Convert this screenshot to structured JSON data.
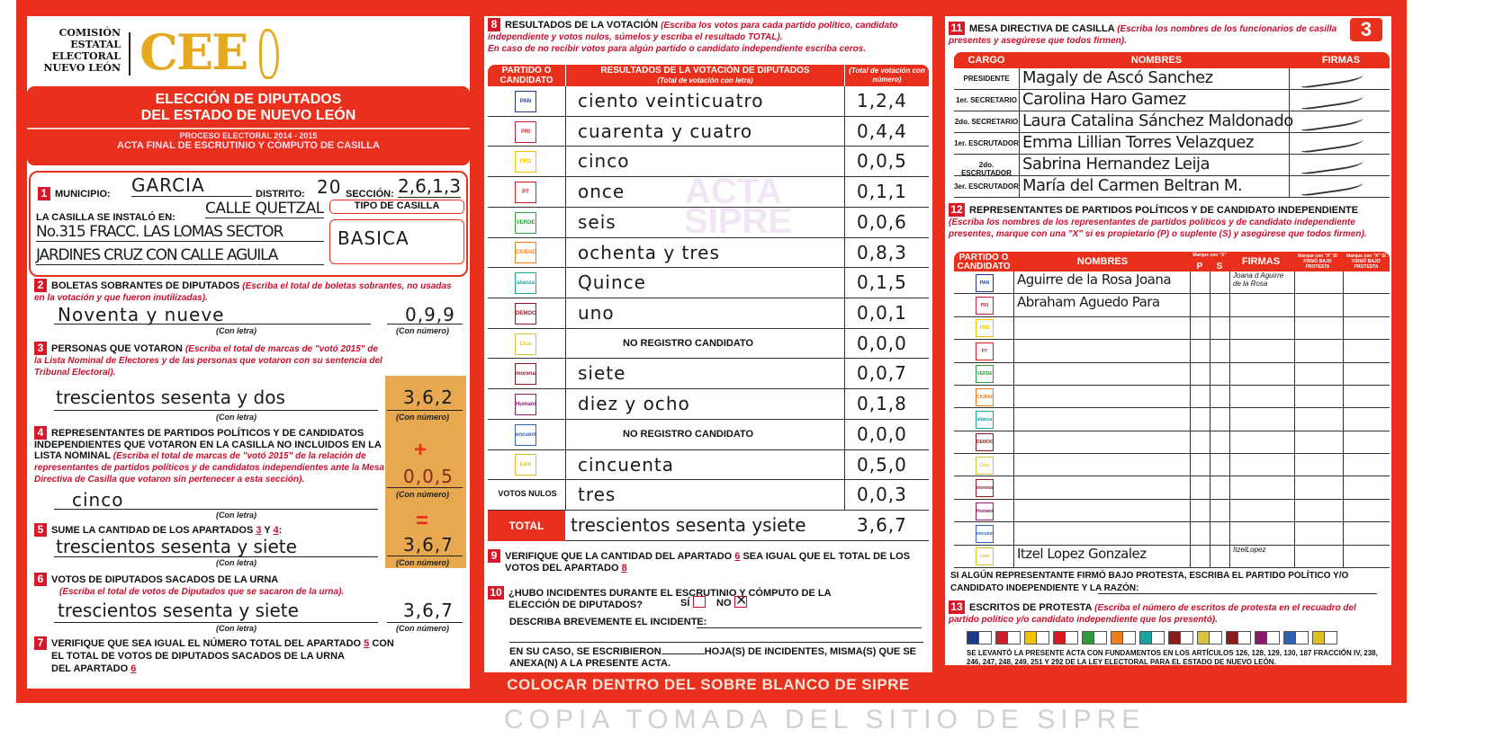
{
  "header": {
    "org": [
      "COMISIÓN",
      "ESTATAL",
      "ELECTORAL",
      "NUEVO LEÓN"
    ],
    "logo": "CEE",
    "title1": "ELECCIÓN DE DIPUTADOS",
    "title2": "DEL ESTADO DE NUEVO LEÓN",
    "process": "PROCESO ELECTORAL  2014 - 2015",
    "acta": "ACTA FINAL DE ESCRUTINIO Y CÓMPUTO DE CASILLA",
    "page_number": "3"
  },
  "s1": {
    "num": "1",
    "municipio_label": "MUNICIPIO:",
    "municipio": "GARCIA",
    "distrito_label": "DISTRITO:",
    "distrito": "20",
    "seccion_label": "SECCIÓN:",
    "seccion": "2,6,1,3",
    "instalo_label": "LA CASILLA SE INSTALÓ EN:",
    "addr1": "CALLE QUETZAL",
    "addr2": "No.315 FRACC. LAS LOMAS SECTOR",
    "addr3": "JARDINES CRUZ CON CALLE AGUILA",
    "tipo_label": "TIPO DE CASILLA",
    "tipo": "BASICA"
  },
  "labels": {
    "con_letra": "(Con letra)",
    "con_numero": "(Con número)",
    "plus": "+",
    "equals": "="
  },
  "s2": {
    "num": "2",
    "title": "BOLETAS SOBRANTES DE DIPUTADOS",
    "hint": "(Escriba el total de boletas sobrantes, no usadas en la votación y que fueron inutilizadas).",
    "letra": "Noventa y nueve",
    "numero": "0,9,9"
  },
  "s3": {
    "num": "3",
    "title": "PERSONAS QUE VOTARON",
    "hint": "(Escriba el total de marcas de \"votó 2015\" de la Lista Nominal de Electores y de las personas que votaron con su sentencia del Tribunal Electoral).",
    "letra": "trescientos sesenta y dos",
    "numero": "3,6,2"
  },
  "s4": {
    "num": "4",
    "title": "REPRESENTANTES DE PARTIDOS POLÍTICOS Y DE CANDIDATOS INDEPENDIENTES QUE VOTARON EN LA CASILLA NO INCLUIDOS EN LA LISTA NOMINAL",
    "hint": "(Escriba el total de marcas de \"votó 2015\" de la relación de representantes de partidos políticos y de candidatos independientes ante la Mesa Directiva de Casilla que votaron sin pertenecer a esta sección).",
    "letra": "cinco",
    "numero": "0,0,5"
  },
  "s5": {
    "num": "5",
    "title": "SUME LA CANTIDAD DE LOS APARTADOS",
    "a": "3",
    "y": "Y",
    "b": "4",
    "colon": ":",
    "letra": "trescientos sesenta y siete",
    "numero": "3,6,7"
  },
  "s6": {
    "num": "6",
    "title": "VOTOS DE DIPUTADOS SACADOS DE LA URNA",
    "hint": "(Escriba el total de votos de Diputados que se sacaron de la urna).",
    "letra": "trescientos sesenta y siete",
    "numero": "3,6,7"
  },
  "s7": {
    "num": "7",
    "line1": "VERIFIQUE QUE SEA IGUAL EL NÚMERO TOTAL DEL APARTADO",
    "a": "5",
    "con": "CON",
    "line2": "EL TOTAL DE VOTOS DE DIPUTADOS SACADOS DE LA URNA",
    "line3": "DEL APARTADO",
    "b": "6"
  },
  "s8": {
    "num": "8",
    "title": "RESULTADOS DE LA VOTACIÓN",
    "hint1": "(Escriba los votos para cada partido político, candidato independiente y votos nulos, súmelos y escriba el resultado TOTAL).",
    "hint2": "En caso de no recibir votos para algún partido o candidato independiente escriba ceros.",
    "col1": "PARTIDO O CANDIDATO",
    "col2": "RESULTADOS DE LA VOTACIÓN DE DIPUTADOS",
    "col2sub": "(Total de votación con letra)",
    "col3": "(Total de votación con número)",
    "rows": [
      {
        "party": "PAN",
        "letra": "ciento veinticuatro",
        "numero": "1,2,4",
        "color": "#1a3a8c"
      },
      {
        "party": "PRI",
        "letra": "cuarenta y cuatro",
        "numero": "0,4,4",
        "color": "#cc1f2b"
      },
      {
        "party": "PRD",
        "letra": "cinco",
        "numero": "0,0,5",
        "color": "#f2c200"
      },
      {
        "party": "PT",
        "letra": "once",
        "numero": "0,1,1",
        "color": "#d9181f"
      },
      {
        "party": "VERDE",
        "letra": "seis",
        "numero": "0,0,6",
        "color": "#2f9a3b"
      },
      {
        "party": "CIUDADANO",
        "letra": "ochenta y tres",
        "numero": "0,8,3",
        "color": "#ef7d1a"
      },
      {
        "party": "alianza",
        "letra": "Quince",
        "numero": "0,1,5",
        "color": "#1aa3a0"
      },
      {
        "party": "DEMOCRATA",
        "letra": "uno",
        "numero": "0,0,1",
        "color": "#8a1c1c"
      },
      {
        "party": "Cruz",
        "letra": "NO REGISTRO CANDIDATO",
        "numero": "0,0,0",
        "color": "#d8c040"
      },
      {
        "party": "morena",
        "letra": "siete",
        "numero": "0,0,7",
        "color": "#8b1a1a"
      },
      {
        "party": "Humanista",
        "letra": "diez y ocho",
        "numero": "0,1,8",
        "color": "#8c1a6a"
      },
      {
        "party": "encuentro",
        "letra": "NO REGISTRO CANDIDATO",
        "numero": "0,0,0",
        "color": "#3060b0"
      },
      {
        "party": "Lolo",
        "letra": "cincuenta",
        "numero": "0,5,0",
        "color": "#e0c020"
      },
      {
        "party": "VOTOS NULOS",
        "letra": "tres",
        "numero": "0,0,3",
        "color": ""
      }
    ],
    "total_label": "TOTAL",
    "total_letra": "trescientos sesenta ysiete",
    "total_numero": "3,6,7"
  },
  "s9": {
    "num": "9",
    "line1": "VERIFIQUE QUE LA CANTIDAD DEL APARTADO",
    "a": "6",
    "line1b": "SEA IGUAL QUE EL TOTAL DE LOS",
    "line2": "VOTOS DEL APARTADO",
    "b": "8"
  },
  "s10": {
    "num": "10",
    "q1": "¿HUBO INCIDENTES DURANTE EL ESCRUTINIO Y CÓMPUTO DE LA",
    "q2": "ELECCIÓN DE DIPUTADOS?",
    "si": "SÍ",
    "no": "NO",
    "si_checked": false,
    "no_checked": true,
    "describe": "DESCRIBA BREVEMENTE EL INCIDENTE:",
    "en_su_caso": "EN SU CASO, SE ESCRIBIERON",
    "hojas": "HOJA(S) DE INCIDENTES, MISMA(S) QUE SE",
    "anexa": "ANEXA(N) A LA PRESENTE ACTA."
  },
  "footer": "COLOCAR DENTRO DEL SOBRE BLANCO DE SIPRE",
  "s11": {
    "num": "11",
    "title": "MESA DIRECTIVA DE CASILLA",
    "hint": "(Escriba los nombres de los funcionarios de casilla presentes y asegúrese que todos firmen).",
    "col1": "CARGO",
    "col2": "NOMBRES",
    "col3": "FIRMAS",
    "rows": [
      {
        "cargo": "PRESIDENTE",
        "nombre": "Magaly de Ascó Sanchez"
      },
      {
        "cargo": "1er. SECRETARIO",
        "nombre": "Carolina Haro Gamez"
      },
      {
        "cargo": "2do. SECRETARIO",
        "nombre": "Laura Catalina Sánchez Maldonado"
      },
      {
        "cargo": "1er. ESCRUTADOR",
        "nombre": "Emma Lillian Torres Velazquez"
      },
      {
        "cargo": "2do. ESCRUTADOR",
        "nombre": "Sabrina Hernandez Leija"
      },
      {
        "cargo": "3er. ESCRUTADOR",
        "nombre": "María del Carmen Beltran M."
      }
    ]
  },
  "s12": {
    "num": "12",
    "title": "REPRESENTANTES DE PARTIDOS POLÍTICOS Y DE CANDIDATO INDEPENDIENTE",
    "hint": "(Escriba los nombres de los representantes de partidos políticos y de candidato independiente presentes, marque con una \"X\" si es propietario (P) o suplente (S) y asegúrese que todos firmen).",
    "col1": "PARTIDO O CANDIDATO",
    "col2": "NOMBRES",
    "marque": "Marque con \"X\"",
    "p": "P",
    "s": "S",
    "col3": "FIRMAS",
    "col4": "Marque con \"X\" SI FIRMÓ BAJO PROTESTA",
    "col5": "Marque con \"X\" SI FIRMÓ BAJO PROTESTA",
    "rows": [
      {
        "party": "PAN",
        "nombre": "Aguirre de la Rosa Joana",
        "firma": "Joana d Aguirre de la Rosa"
      },
      {
        "party": "PRI",
        "nombre": "Abraham Aguedo Para",
        "firma": ""
      },
      {
        "party": "PRD",
        "nombre": ""
      },
      {
        "party": "PT",
        "nombre": ""
      },
      {
        "party": "VERDE",
        "nombre": ""
      },
      {
        "party": "CIUDADANO",
        "nombre": ""
      },
      {
        "party": "alianza",
        "nombre": ""
      },
      {
        "party": "DEMOCRATA",
        "nombre": ""
      },
      {
        "party": "Cruz",
        "nombre": ""
      },
      {
        "party": "morena",
        "nombre": ""
      },
      {
        "party": "Humanista",
        "nombre": ""
      },
      {
        "party": "encuentro",
        "nombre": ""
      },
      {
        "party": "Lolo",
        "nombre": "Itzel Lopez Gonzalez",
        "firma": "ItzelLopez"
      }
    ],
    "protesta": "SI ALGÚN REPRESENTANTE FIRMÓ BAJO PROTESTA, ESCRIBA EL PARTIDO POLÍTICO Y/O CANDIDATO INDEPENDIENTE Y LA RAZÓN:"
  },
  "s13": {
    "num": "13",
    "title": "ESCRITOS DE PROTESTA",
    "hint": "(Escriba el número de escritos de protesta en el recuadro del partido político y/o candidato independiente que los presentó).",
    "legal": "SE LEVANTÓ LA PRESENTE ACTA CON FUNDAMENTOS EN LOS ARTÍCULOS 126, 128, 129, 130, 187 FRACCIÓN IV, 238, 246, 247, 248, 249, 251 Y 292 DE LA LEY ELECTORAL PARA EL ESTADO DE NUEVO LEÓN."
  },
  "watermark": {
    "main": "COPIA TOMADA DEL SITIO DE SIPRE",
    "center": "ACTA SIPRE"
  },
  "colors": {
    "red": "#e8301c",
    "gold": "#e6a81e",
    "orange_box": "#e8a850"
  }
}
